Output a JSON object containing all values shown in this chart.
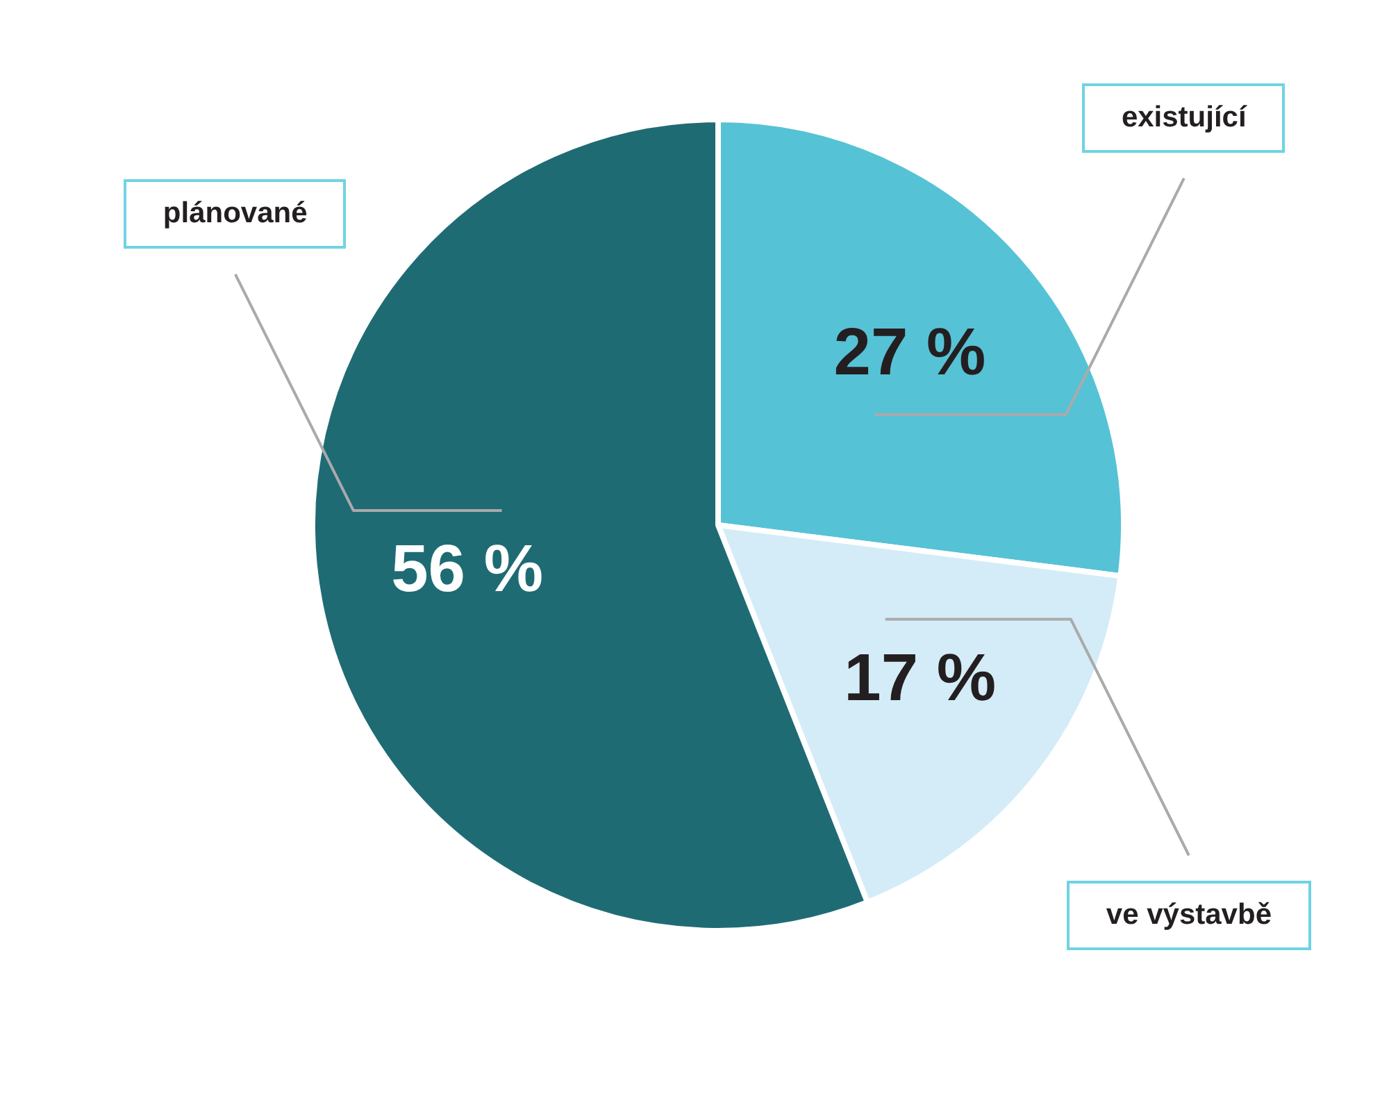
{
  "chart_data": {
    "type": "pie",
    "categories": [
      "existující",
      "ve výstavbě",
      "plánované"
    ],
    "values": [
      27,
      17,
      56
    ],
    "colors": [
      "#56c2d6",
      "#d4ecf7",
      "#1f6b74"
    ],
    "value_labels": [
      "27 %",
      "17 %",
      "56 %"
    ],
    "legend": false
  }
}
